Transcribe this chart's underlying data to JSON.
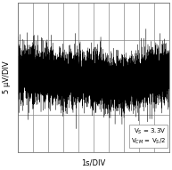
{
  "title": "",
  "xlabel": "1s/DIV",
  "ylabel": "5 μV/DIV",
  "background_color": "#ffffff",
  "plot_bg_color": "#ffffff",
  "grid_color": "#888888",
  "signal_color": "#000000",
  "annotation_line1": "V$_S$ = 3.3V",
  "annotation_line2": "V$_{CM}$ = V$_S$/2",
  "xlim": [
    0,
    10
  ],
  "ylim": [
    -5,
    5
  ],
  "x_divs": 10,
  "y_divs": 4,
  "seed": 12,
  "n_points": 8000,
  "white_noise_scale": 0.85,
  "low_freq_scale": 0.45,
  "annotation_fontsize": 5.0,
  "xlabel_fontsize": 6,
  "ylabel_fontsize": 6
}
